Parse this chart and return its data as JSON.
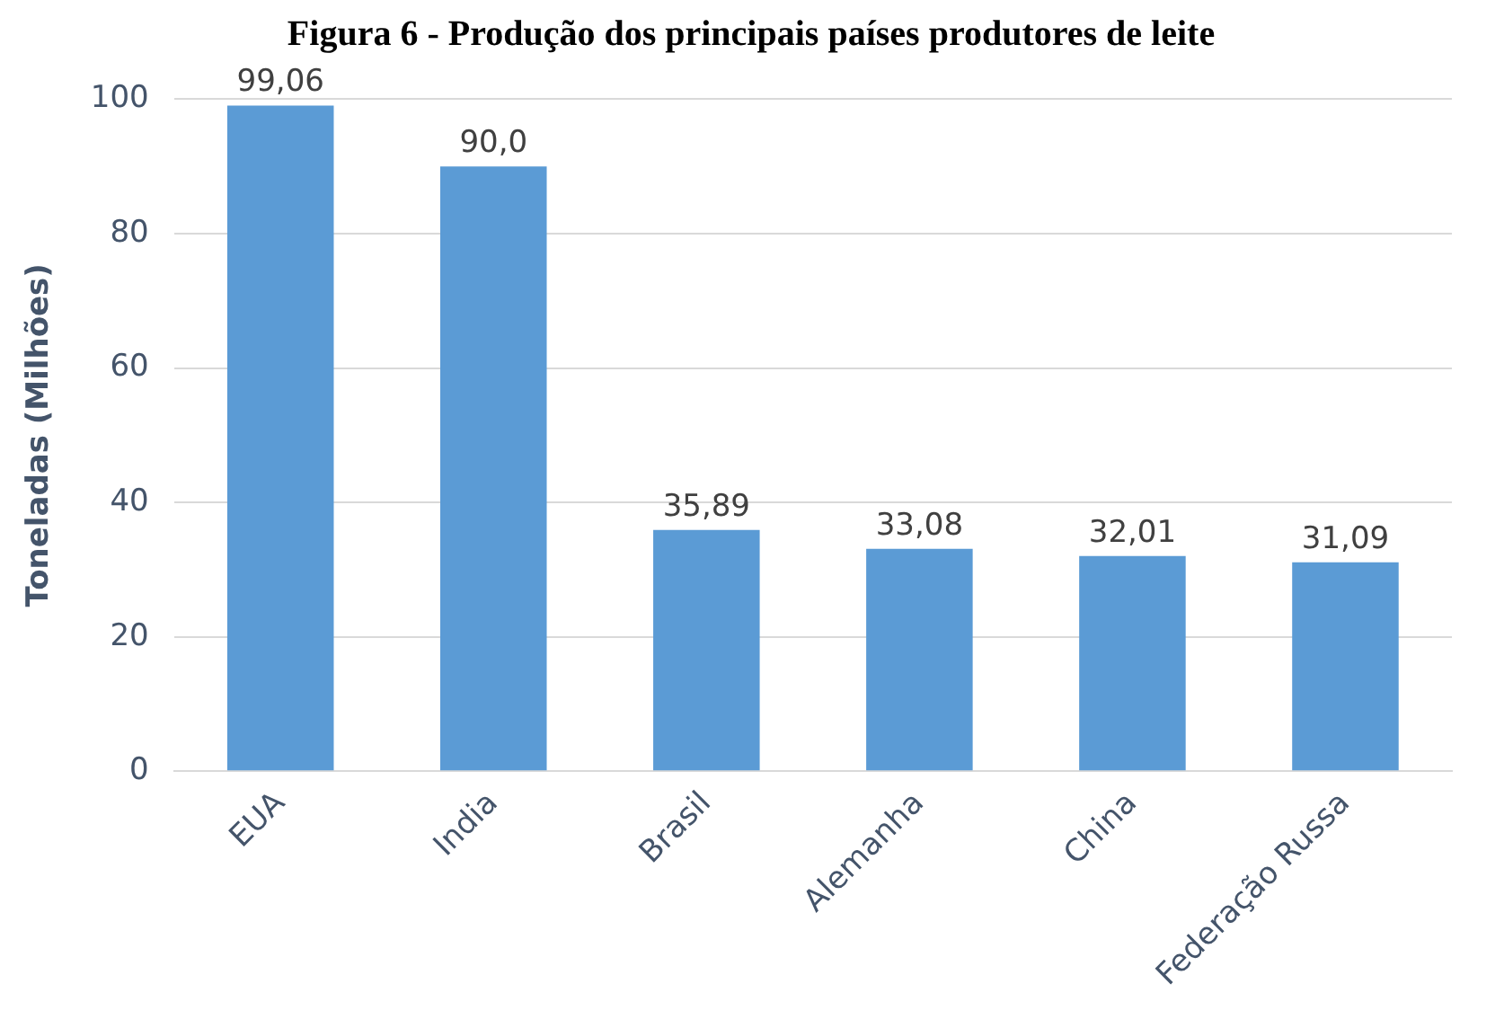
{
  "chart_data": {
    "type": "bar",
    "title": "Figura 6 - Produção dos principais países produtores de leite",
    "ylabel": "Toneladas (Milhões)",
    "categories": [
      "EUA",
      "India",
      "Brasil",
      "Alemanha",
      "China",
      "Federação Russa"
    ],
    "values": [
      99.06,
      90.0,
      35.89,
      33.08,
      32.01,
      31.09
    ],
    "value_labels": [
      "99,06",
      "90,0",
      "35,89",
      "33,08",
      "32,01",
      "31,09"
    ],
    "color": "#5b9bd5",
    "ylim": [
      0,
      100
    ],
    "yticks": [
      0,
      20,
      40,
      60,
      80,
      100
    ],
    "grid": "y",
    "legend": false
  }
}
